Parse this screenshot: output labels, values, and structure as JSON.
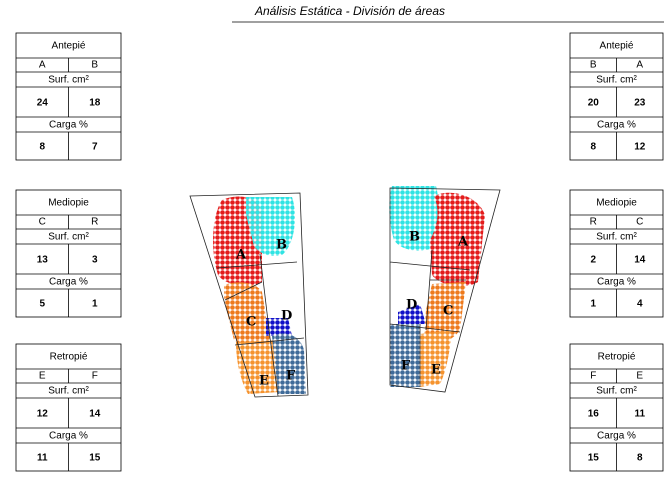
{
  "header": {
    "title": "Análisis Estática - División de áreas"
  },
  "tables": [
    {
      "title": "Antepié",
      "columns": [
        "A",
        "B"
      ],
      "surface_label": "Surf. cm²",
      "surface": [
        "24",
        "18"
      ],
      "load_label": "Carga %",
      "load": [
        "8",
        "7"
      ]
    },
    {
      "title": "Mediopie",
      "columns": [
        "C",
        "R"
      ],
      "surface_label": "Surf. cm²",
      "surface": [
        "13",
        "3"
      ],
      "load_label": "Carga %",
      "load": [
        "5",
        "1"
      ]
    },
    {
      "title": "Retropié",
      "columns": [
        "E",
        "F"
      ],
      "surface_label": "Surf. cm²",
      "surface": [
        "12",
        "14"
      ],
      "load_label": "Carga %",
      "load": [
        "11",
        "15"
      ]
    },
    {
      "title": "Antepié",
      "columns": [
        "B",
        "A"
      ],
      "surface_label": "Surf. cm²",
      "surface": [
        "20",
        "23"
      ],
      "load_label": "Carga %",
      "load": [
        "8",
        "12"
      ]
    },
    {
      "title": "Mediopie",
      "columns": [
        "R",
        "C"
      ],
      "surface_label": "Surf. cm²",
      "surface": [
        "2",
        "14"
      ],
      "load_label": "Carga %",
      "load": [
        "1",
        "4"
      ]
    },
    {
      "title": "Retropié",
      "columns": [
        "F",
        "E"
      ],
      "surface_label": "Surf. cm²",
      "surface": [
        "16",
        "11"
      ],
      "load_label": "Carga %",
      "load": [
        "15",
        "8"
      ]
    }
  ],
  "feet": [
    {
      "labels": [
        "A",
        "B",
        "C",
        "D",
        "E",
        "F"
      ]
    },
    {
      "labels": [
        "B",
        "A",
        "D",
        "C",
        "F",
        "E"
      ]
    }
  ]
}
